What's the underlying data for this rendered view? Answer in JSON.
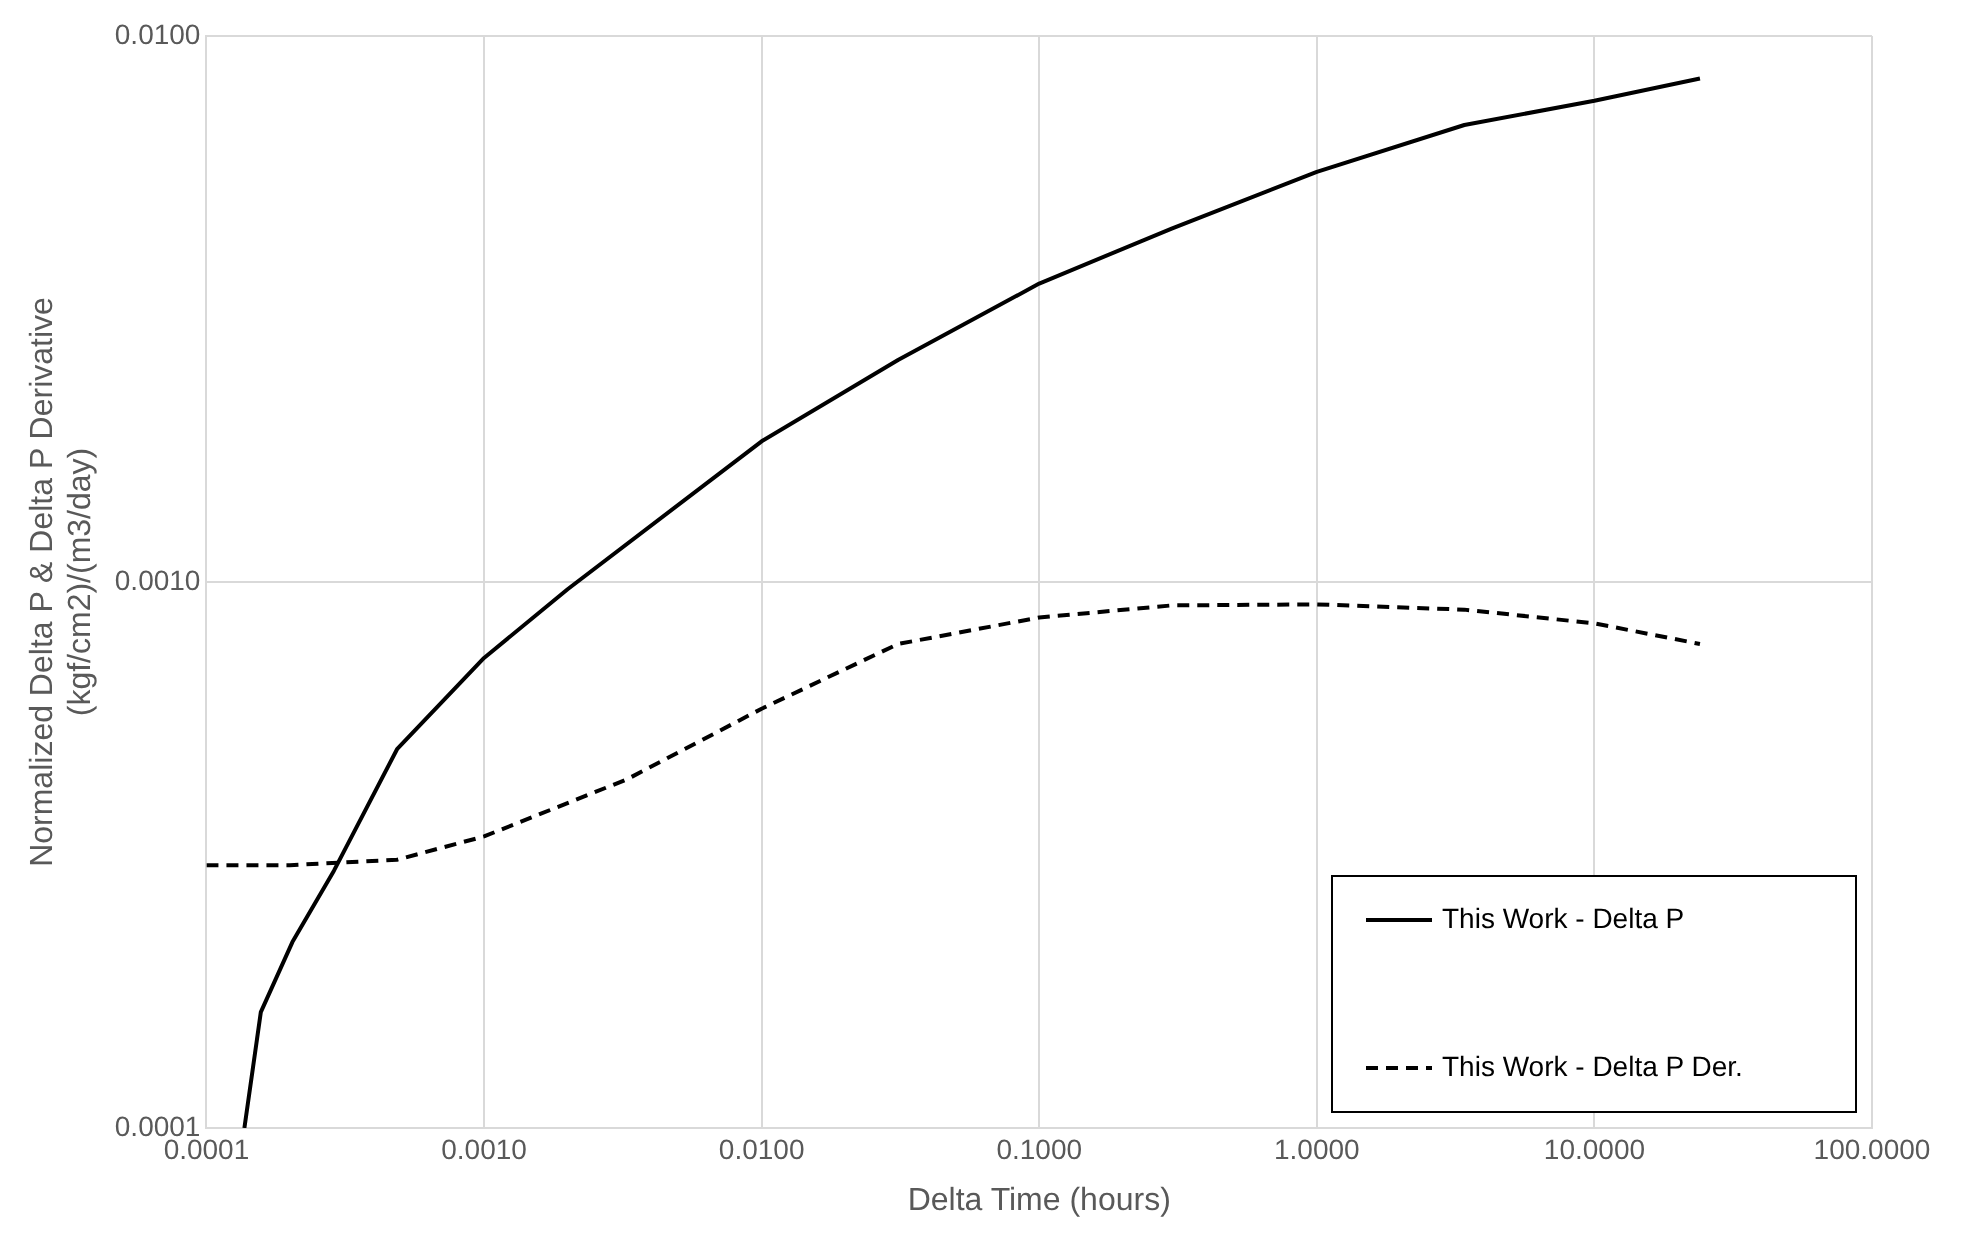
{
  "chart_data": {
    "type": "line",
    "xlabel": "Delta Time (hours)",
    "ylabel": "Normalized Delta P & Delta P Derivative\n(kgf/cm2)/(m3/day)",
    "log": "xy",
    "grid": true,
    "legend": "bottom right",
    "marker": "none",
    "xlim": [
      0.0001,
      100
    ],
    "xticks": [
      {
        "value": 0.0001,
        "label": "0.0001"
      },
      {
        "value": 0.001,
        "label": "0.0010"
      },
      {
        "value": 0.01,
        "label": "0.0100"
      },
      {
        "value": 0.1,
        "label": "0.1000"
      },
      {
        "value": 1,
        "label": "1.0000"
      },
      {
        "value": 10,
        "label": "10.0000"
      },
      {
        "value": 100,
        "label": "100.0000"
      }
    ],
    "ylim": [
      0.0001,
      0.01
    ],
    "yticks": [
      {
        "value": 0.0001,
        "label": "0.0001"
      },
      {
        "value": 0.001,
        "label": "0.0010"
      },
      {
        "value": 0.01,
        "label": "0.0100"
      }
    ],
    "series": [
      {
        "name": "This Work - Delta P",
        "color": "#000000",
        "line_style": "solid",
        "x": [
          0.000137,
          0.000157,
          0.000204,
          0.000288,
          0.000486,
          0.001,
          0.002,
          0.01,
          0.031,
          0.1,
          0.3,
          1,
          3.4,
          10,
          24
        ],
        "values": [
          0.0001,
          0.000163,
          0.000219,
          0.000296,
          0.000494,
          0.000726,
          0.00097,
          0.00181,
          0.00255,
          0.00352,
          0.00444,
          0.00564,
          0.00687,
          0.00761,
          0.00836
        ]
      },
      {
        "name": "This Work - Delta P Der.",
        "color": "#000000",
        "line_style": "dashed",
        "x": [
          0.0001,
          0.0002,
          0.000486,
          0.001,
          0.00327,
          0.01,
          0.031,
          0.1,
          0.3,
          1,
          3.4,
          10,
          24
        ],
        "values": [
          0.000303,
          0.000303,
          0.00031,
          0.000342,
          0.000435,
          0.000586,
          0.00077,
          0.000861,
          0.000906,
          0.00091,
          0.00089,
          0.00084,
          0.00077
        ]
      }
    ]
  }
}
